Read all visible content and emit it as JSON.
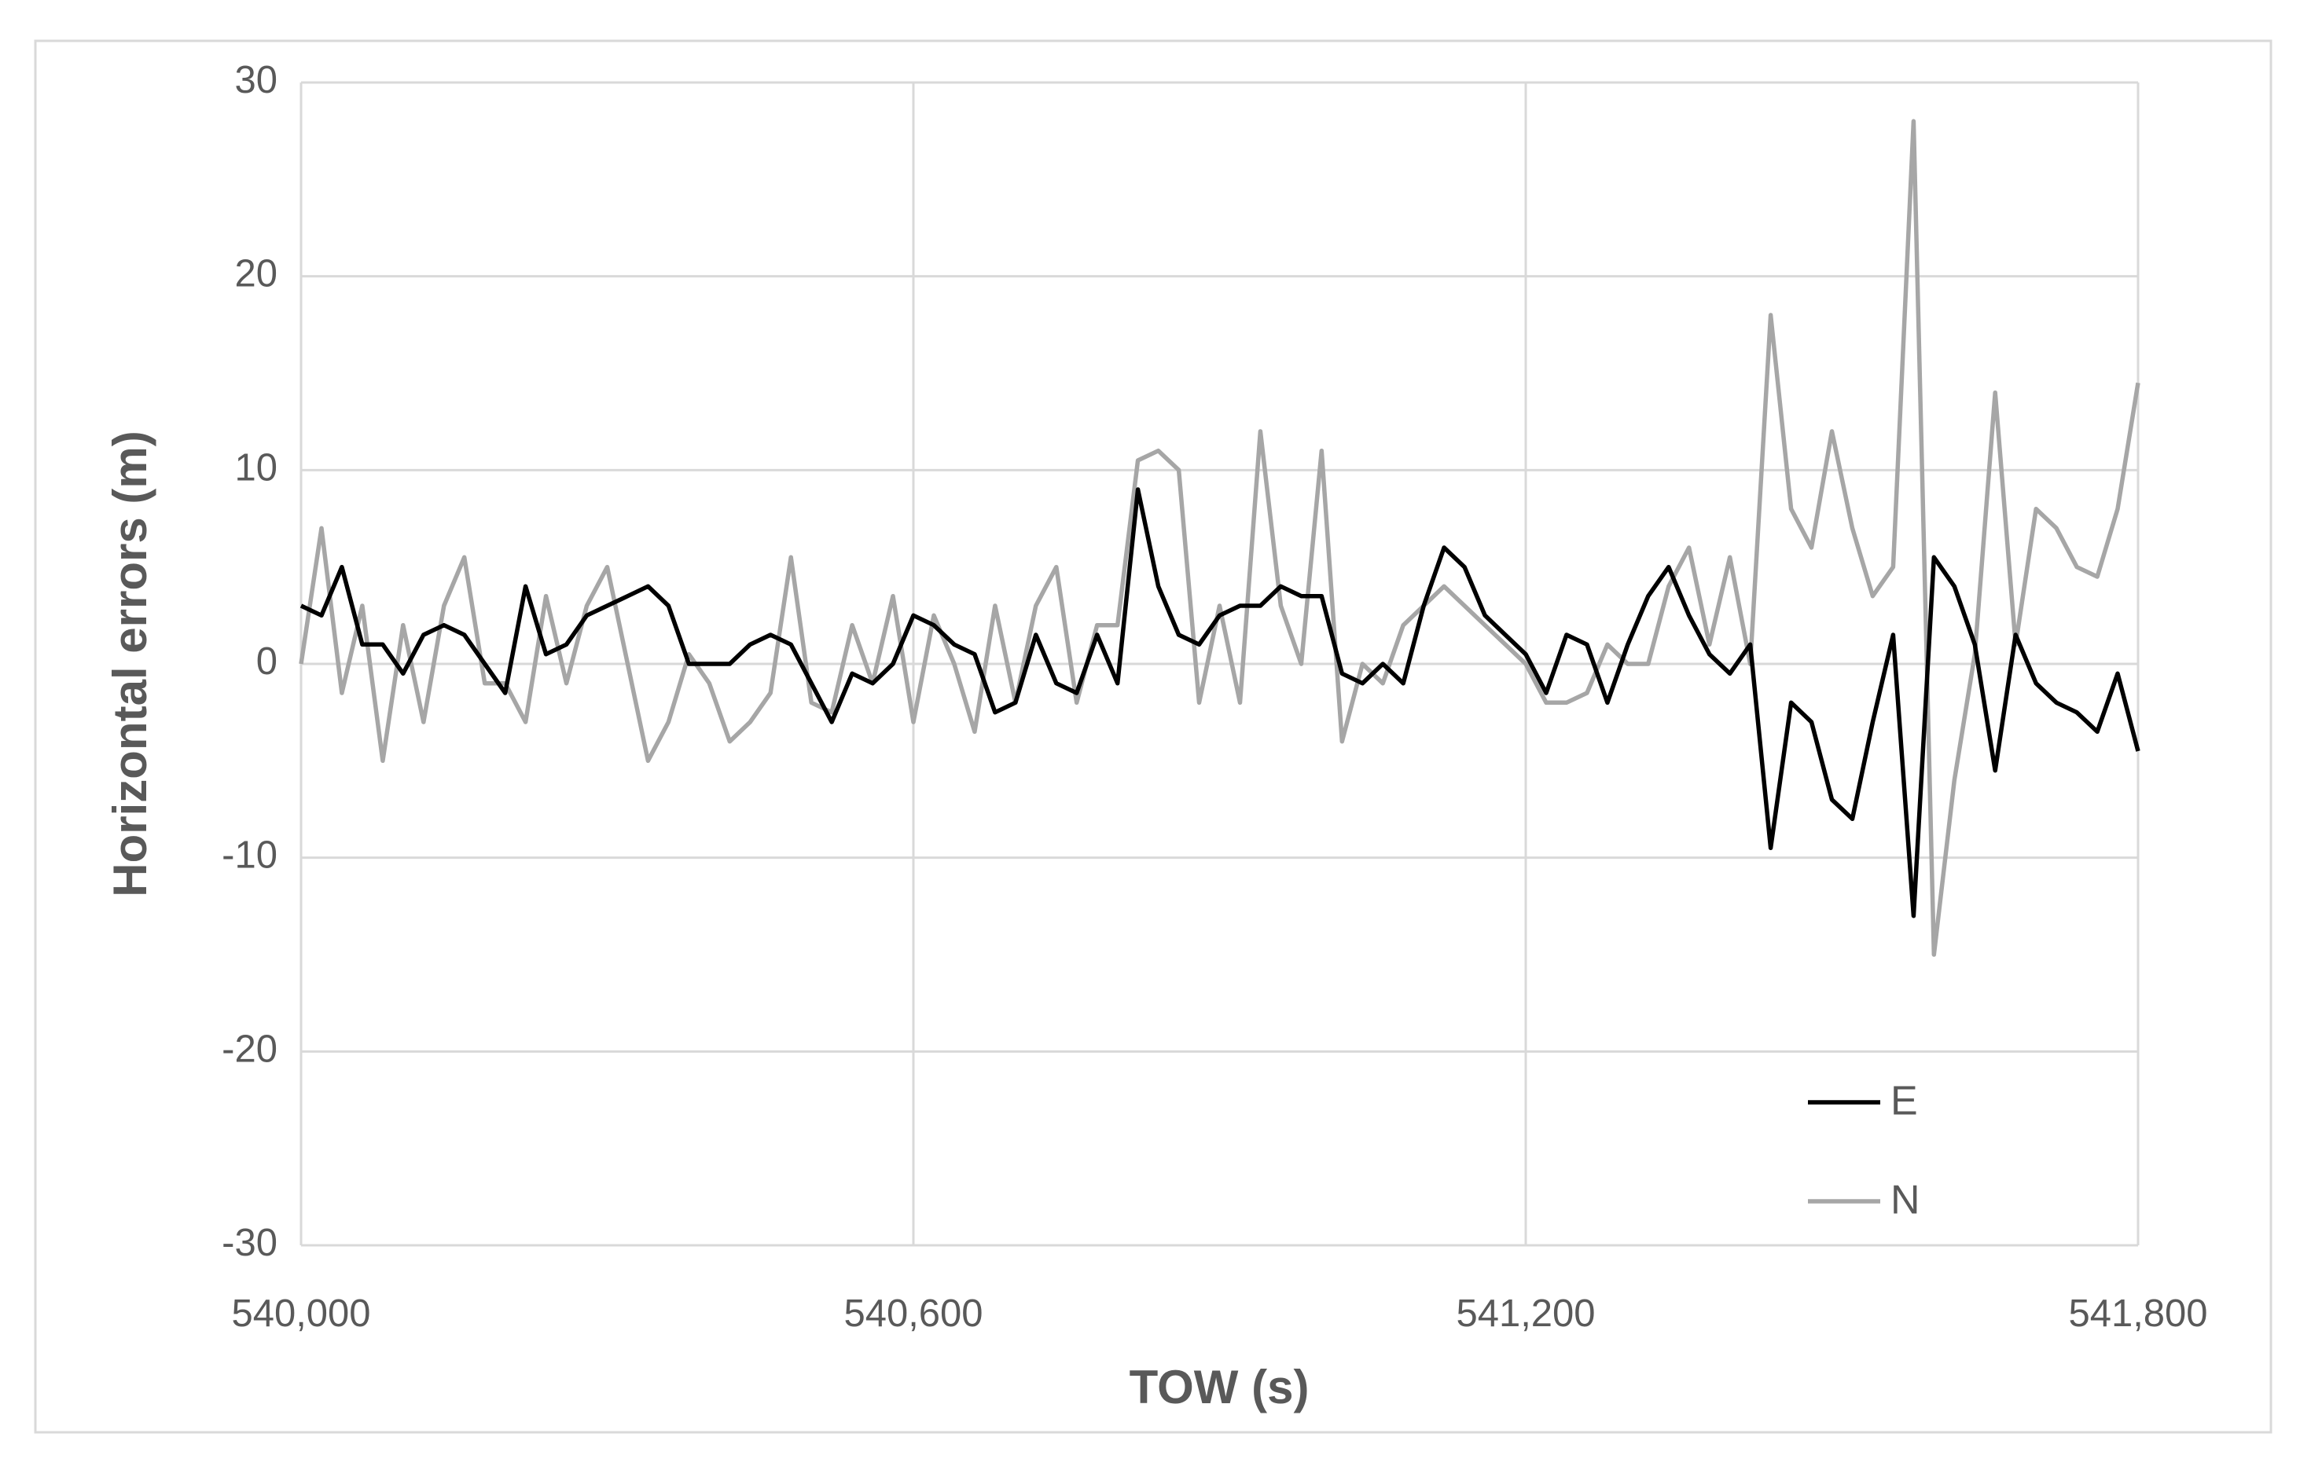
{
  "chart_data": {
    "type": "line",
    "x_label": "TOW (s)",
    "y_label": "Horizontal errors (m)",
    "x": [
      540000,
      540020,
      540040,
      540060,
      540080,
      540100,
      540120,
      540140,
      540160,
      540180,
      540200,
      540220,
      540240,
      540260,
      540280,
      540300,
      540320,
      540340,
      540360,
      540380,
      540400,
      540420,
      540440,
      540460,
      540480,
      540500,
      540520,
      540540,
      540560,
      540580,
      540600,
      540620,
      540640,
      540660,
      540680,
      540700,
      540720,
      540740,
      540760,
      540780,
      540800,
      540820,
      540840,
      540860,
      540880,
      540900,
      540920,
      540940,
      540960,
      540980,
      541000,
      541020,
      541040,
      541060,
      541080,
      541100,
      541120,
      541140,
      541160,
      541180,
      541200,
      541220,
      541240,
      541260,
      541280,
      541300,
      541320,
      541340,
      541360,
      541380,
      541400,
      541420,
      541440,
      541460,
      541480,
      541500,
      541520,
      541540,
      541560,
      541580,
      541600,
      541620,
      541640,
      541660,
      541680,
      541700,
      541720,
      541740,
      541760,
      541780,
      541800
    ],
    "series": [
      {
        "name": "E",
        "color": "#000000",
        "values": [
          3,
          2.5,
          5,
          1,
          1,
          -0.5,
          1.5,
          2,
          1.5,
          0,
          -1.5,
          4,
          0.5,
          1,
          2.5,
          3,
          3.5,
          4,
          3,
          0,
          0,
          0,
          1,
          1.5,
          1,
          -1,
          -3,
          -0.5,
          -1,
          0,
          2.5,
          2,
          1,
          0.5,
          -2.5,
          -2,
          1.5,
          -1,
          -1.5,
          1.5,
          -1,
          9,
          4,
          1.5,
          1,
          2.5,
          3,
          3,
          4,
          3.5,
          3.5,
          -0.5,
          -1,
          0,
          -1,
          3,
          6,
          5,
          2.5,
          1.5,
          0.5,
          -1.5,
          1.5,
          1,
          -2,
          1,
          3.5,
          5,
          2.5,
          0.5,
          -0.5,
          1,
          -9.5,
          -2,
          -3,
          -7,
          -8,
          -3,
          1.5,
          -13,
          5.5,
          4,
          1,
          -5.5,
          1.5,
          -1,
          -2,
          -2.5,
          -3.5,
          -0.5,
          -4.5
        ]
      },
      {
        "name": "N",
        "color": "#a6a6a6",
        "values": [
          0,
          7,
          -1.5,
          3,
          -5,
          2,
          -3,
          3,
          5.5,
          -1,
          -1,
          -3,
          3.5,
          -1,
          3,
          5,
          0,
          -5,
          -3,
          0.5,
          -1,
          -4,
          -3,
          -1.5,
          5.5,
          -2,
          -2.5,
          2,
          -1,
          3.5,
          -3,
          2.5,
          0,
          -3.5,
          3,
          -2,
          3,
          5,
          -2,
          2,
          2,
          10.5,
          11,
          10,
          -2,
          3,
          -2,
          12,
          3,
          0,
          11,
          -4,
          0,
          -1,
          2,
          3,
          4,
          3,
          2,
          1,
          0,
          -2,
          -2,
          -1.5,
          1,
          0,
          0,
          4,
          6,
          1,
          5.5,
          0,
          18,
          8,
          6,
          12,
          7,
          3.5,
          5,
          28,
          -15,
          -6,
          0.5,
          14,
          1,
          8,
          7,
          5,
          4.5,
          8,
          14.5
        ]
      }
    ],
    "xlim": [
      540000,
      541800
    ],
    "xticks": [
      {
        "value": 540000,
        "label": "540,000"
      },
      {
        "value": 540600,
        "label": "540,600"
      },
      {
        "value": 541200,
        "label": "541,200"
      },
      {
        "value": 541800,
        "label": "541,800"
      }
    ],
    "ylim": [
      -30,
      30
    ],
    "yticks": [
      -30,
      -20,
      -10,
      0,
      10,
      20,
      30
    ],
    "grid": true,
    "legend": "lower right"
  }
}
